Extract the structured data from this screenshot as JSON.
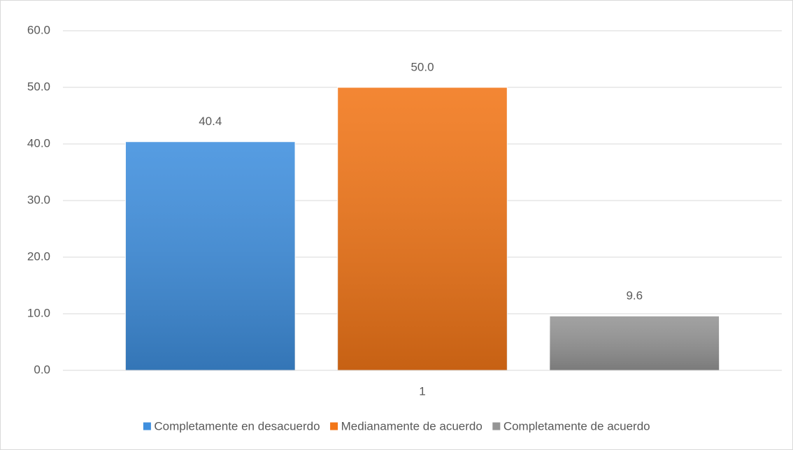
{
  "chart_data": {
    "type": "bar",
    "categories": [
      "1"
    ],
    "series": [
      {
        "name": "Completamente en desacuerdo",
        "color": "#3f8fde",
        "values": [
          40.4
        ],
        "value_labels": [
          "40.4"
        ]
      },
      {
        "name": "Medianamente de acuerdo",
        "color": "#f27618",
        "values": [
          50.0
        ],
        "value_labels": [
          "50.0"
        ]
      },
      {
        "name": "Completamente de acuerdo",
        "color": "#959595",
        "values": [
          9.6
        ],
        "value_labels": [
          "9.6"
        ]
      }
    ],
    "ylim": [
      0,
      60
    ],
    "yticks": [
      {
        "value": 0,
        "label": "0.0"
      },
      {
        "value": 10,
        "label": "10.0"
      },
      {
        "value": 20,
        "label": "20.0"
      },
      {
        "value": 30,
        "label": "30.0"
      },
      {
        "value": 40,
        "label": "40.0"
      },
      {
        "value": 50,
        "label": "50.0"
      },
      {
        "value": 60,
        "label": "60.0"
      }
    ],
    "grid": true,
    "legend": "bottom"
  }
}
